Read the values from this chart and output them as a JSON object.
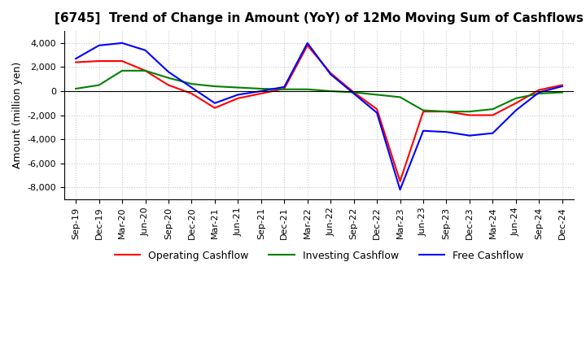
{
  "title": "[6745]  Trend of Change in Amount (YoY) of 12Mo Moving Sum of Cashflows",
  "ylabel": "Amount (million yen)",
  "ylim": [
    -9000,
    5000
  ],
  "yticks": [
    -8000,
    -6000,
    -4000,
    -2000,
    0,
    2000,
    4000
  ],
  "x_labels": [
    "Sep-19",
    "Dec-19",
    "Mar-20",
    "Jun-20",
    "Sep-20",
    "Dec-20",
    "Mar-21",
    "Jun-21",
    "Sep-21",
    "Dec-21",
    "Mar-22",
    "Jun-22",
    "Sep-22",
    "Dec-22",
    "Mar-23",
    "Jun-23",
    "Sep-23",
    "Dec-23",
    "Mar-24",
    "Jun-24",
    "Sep-24",
    "Dec-24"
  ],
  "operating": [
    2400,
    2500,
    2500,
    1700,
    500,
    -200,
    -1400,
    -600,
    -200,
    200,
    3800,
    1500,
    -100,
    -1500,
    -7500,
    -1700,
    -1700,
    -2000,
    -2000,
    -1000,
    100,
    500
  ],
  "investing": [
    200,
    500,
    1700,
    1700,
    1100,
    600,
    400,
    300,
    200,
    150,
    150,
    0,
    -100,
    -300,
    -500,
    -1600,
    -1700,
    -1700,
    -1500,
    -600,
    -200,
    -100
  ],
  "free": [
    2700,
    3800,
    4000,
    3400,
    1600,
    300,
    -1000,
    -300,
    0,
    350,
    4000,
    1400,
    -200,
    -1800,
    -8200,
    -3300,
    -3400,
    -3700,
    -3500,
    -1600,
    -100,
    400
  ],
  "operating_color": "#ff0000",
  "investing_color": "#008000",
  "free_color": "#0000ff",
  "grid_color": "#c8c8c8",
  "background_color": "#ffffff",
  "title_fontsize": 11,
  "tick_fontsize": 8,
  "legend_labels": [
    "Operating Cashflow",
    "Investing Cashflow",
    "Free Cashflow"
  ]
}
